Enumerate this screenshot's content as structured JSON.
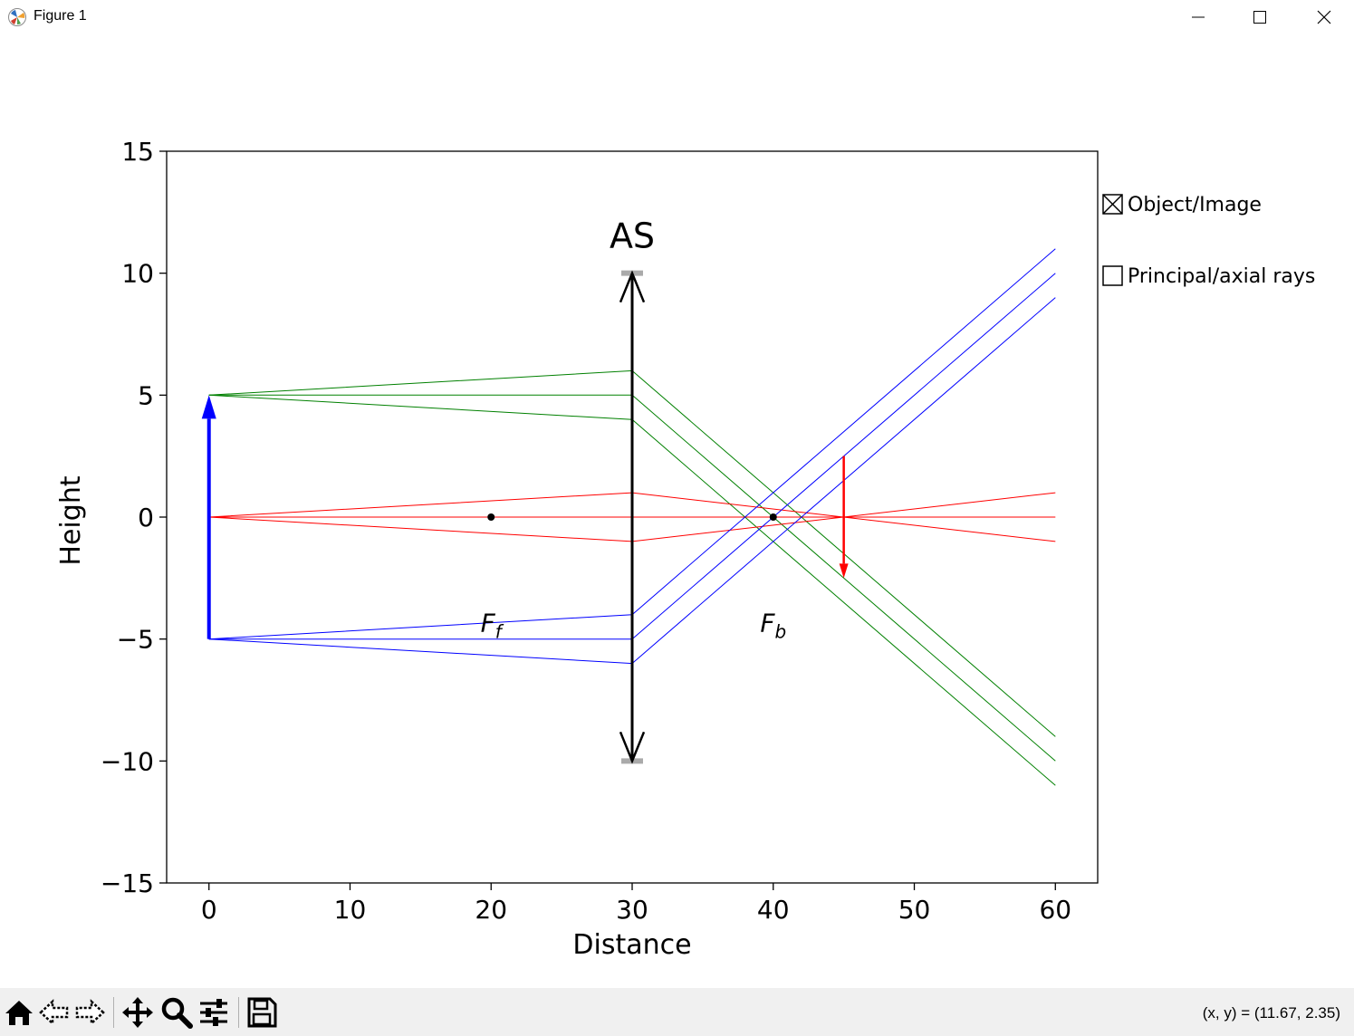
{
  "window": {
    "title": "Figure 1",
    "icons": [
      "matplotlib-icon",
      "minimize-icon",
      "maximize-icon",
      "close-icon"
    ]
  },
  "toolbar": {
    "buttons": [
      "home-icon",
      "back-icon",
      "forward-icon",
      "pan-icon",
      "zoom-icon",
      "configure-subplots-icon",
      "save-icon"
    ],
    "coords_text": "(x, y) = (11.67, 2.35)"
  },
  "checkboxes": [
    {
      "label": "Object/Image",
      "checked": true
    },
    {
      "label": "Principal/axial rays",
      "checked": false
    }
  ],
  "chart_data": {
    "type": "line",
    "title": "",
    "xlabel": "Distance",
    "ylabel": "Height",
    "xlim": [
      -3,
      63
    ],
    "ylim": [
      -15,
      15
    ],
    "xticks": [
      0,
      10,
      20,
      30,
      40,
      50,
      60
    ],
    "yticks": [
      15,
      10,
      5,
      0,
      -5,
      -10,
      -15
    ],
    "ytick_labels": [
      "15",
      "10",
      "5",
      "0",
      "−5",
      "−10",
      "−15"
    ],
    "grid": false,
    "lens": {
      "x": 30,
      "y_top": 10,
      "y_bottom": -10,
      "label": "AS",
      "color": "#000000"
    },
    "aperture_stops": [
      {
        "x": 30,
        "y": 10
      },
      {
        "x": 30,
        "y": -10
      }
    ],
    "object": {
      "x": 0,
      "y_from": -5,
      "y_to": 5,
      "color": "#0000ff"
    },
    "image": {
      "x": 45,
      "y_from": 2.5,
      "y_to": -2.5,
      "color": "#ff0000"
    },
    "focal_points": [
      {
        "x": 20,
        "y": 0,
        "label": "F",
        "subscript": "f",
        "label_y": -4.7
      },
      {
        "x": 40,
        "y": 0,
        "label": "F",
        "subscript": "b",
        "label_y": -4.7
      }
    ],
    "ray_series": [
      {
        "color": "#008000",
        "rays": [
          [
            [
              0,
              5
            ],
            [
              30,
              6
            ],
            [
              60,
              -9
            ]
          ],
          [
            [
              0,
              5
            ],
            [
              30,
              5
            ],
            [
              60,
              -10
            ]
          ],
          [
            [
              0,
              5
            ],
            [
              30,
              4
            ],
            [
              60,
              -11
            ]
          ]
        ]
      },
      {
        "color": "#ff0000",
        "rays": [
          [
            [
              0,
              0
            ],
            [
              30,
              1
            ],
            [
              60,
              -1
            ]
          ],
          [
            [
              0,
              0
            ],
            [
              30,
              0
            ],
            [
              60,
              0
            ]
          ],
          [
            [
              0,
              0
            ],
            [
              30,
              -1
            ],
            [
              60,
              1
            ]
          ]
        ]
      },
      {
        "color": "#0000ff",
        "rays": [
          [
            [
              0,
              -5
            ],
            [
              30,
              -4
            ],
            [
              60,
              11
            ]
          ],
          [
            [
              0,
              -5
            ],
            [
              30,
              -5
            ],
            [
              60,
              10
            ]
          ],
          [
            [
              0,
              -5
            ],
            [
              30,
              -6
            ],
            [
              60,
              9
            ]
          ]
        ]
      }
    ]
  }
}
